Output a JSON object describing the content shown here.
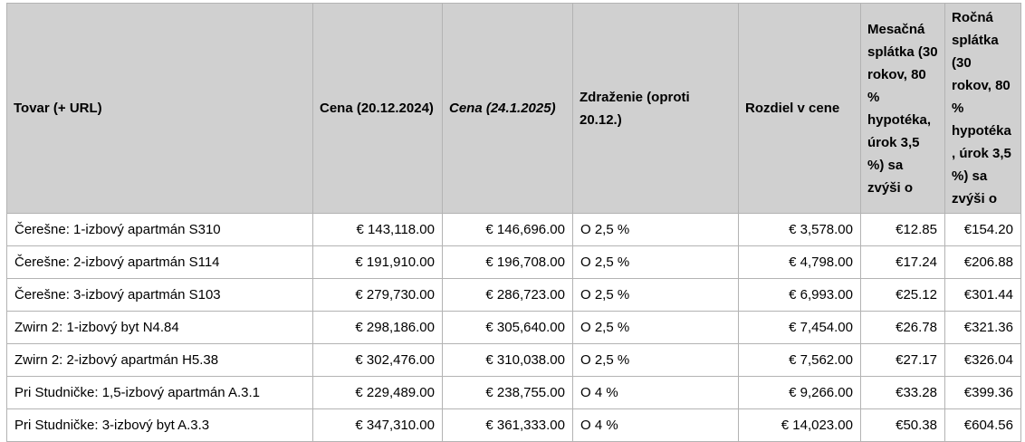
{
  "colors": {
    "page_bg": "#ffffff",
    "header_bg": "#d0d0d0",
    "border": "#b3b3b3",
    "text": "#000000"
  },
  "table": {
    "columns": [
      {
        "label": "Tovar (+ URL)"
      },
      {
        "label": "Cena (20.12.2024)"
      },
      {
        "label": "Cena (24.1.2025)"
      },
      {
        "label": "Zdraženie (oproti 20.12.)"
      },
      {
        "label": "Rozdiel v cene"
      },
      {
        "label": "Mesačná splátka (30 rokov, 80 % hypotéka, úrok 3,5 %) sa zvýši o"
      },
      {
        "label": "Ročná splátka (30 rokov, 80 % hypotéka, úrok 3,5 %) sa zvýši o"
      }
    ],
    "rows": [
      [
        "Čerešne: 1-izbový apartmán S310",
        "€ 143,118.00",
        "€ 146,696.00",
        "O 2,5 %",
        "€ 3,578.00",
        "€12.85",
        "€154.20"
      ],
      [
        "Čerešne: 2-izbový apartmán S114",
        "€ 191,910.00",
        "€ 196,708.00",
        "O 2,5 %",
        "€ 4,798.00",
        "€17.24",
        "€206.88"
      ],
      [
        "Čerešne: 3-izbový apartmán S103",
        "€ 279,730.00",
        "€ 286,723.00",
        "O 2,5 %",
        "€ 6,993.00",
        "€25.12",
        "€301.44"
      ],
      [
        "Zwirn 2: 1-izbový byt N4.84",
        "€ 298,186.00",
        "€ 305,640.00",
        "O 2,5 %",
        "€ 7,454.00",
        "€26.78",
        "€321.36"
      ],
      [
        "Zwirn 2: 2-izbový apartmán H5.38",
        "€ 302,476.00",
        "€ 310,038.00",
        "O 2,5 %",
        "€ 7,562.00",
        "€27.17",
        "€326.04"
      ],
      [
        "Pri Studničke: 1,5-izbový apartmán A.3.1",
        "€ 229,489.00",
        "€ 238,755.00",
        "O 4 %",
        "€ 9,266.00",
        "€33.28",
        "€399.36"
      ],
      [
        "Pri Studničke: 3-izbový byt A.3.3",
        "€ 347,310.00",
        "€ 361,333.00",
        "O 4 %",
        "€ 14,023.00",
        "€50.38",
        "€604.56"
      ]
    ]
  }
}
